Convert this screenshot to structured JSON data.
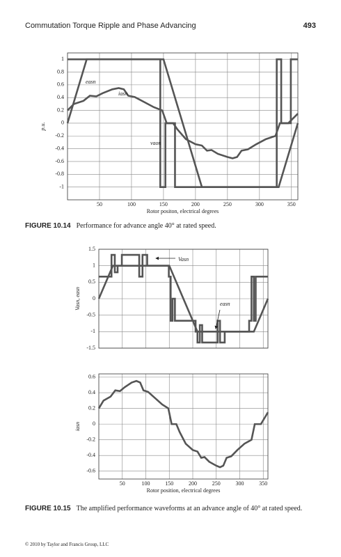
{
  "header": {
    "title": "Commutation Torque Ripple and Phase Advancing",
    "page": "493"
  },
  "chart_data": [
    {
      "type": "line",
      "xlim": [
        0,
        360
      ],
      "ylim": [
        -1.2,
        1.1
      ],
      "xticks": [
        50,
        100,
        150,
        200,
        250,
        300,
        350
      ],
      "xtick_labels": true,
      "yticks": [
        -1,
        -0.8,
        -0.6,
        -0.4,
        -0.2,
        0,
        0.2,
        0.4,
        0.6,
        0.8,
        1
      ],
      "xlabel": "Rotor positon, electrical degrees",
      "ylabel": "p.u.",
      "grid": true,
      "series": [
        {
          "name": "easn",
          "color": "#555555",
          "x": [
            0,
            30,
            150,
            210,
            330,
            360
          ],
          "values": [
            0,
            1,
            1,
            -1,
            -1,
            0
          ]
        },
        {
          "name": "iasn",
          "color": "#555555",
          "x": [
            0,
            10,
            25,
            35,
            45,
            55,
            70,
            80,
            88,
            95,
            105,
            120,
            135,
            148,
            155,
            165,
            172,
            185,
            200,
            210,
            218,
            225,
            235,
            250,
            258,
            265,
            272,
            282,
            295,
            310,
            325,
            332,
            345,
            360
          ],
          "values": [
            0.2,
            0.3,
            0.35,
            0.43,
            0.42,
            0.47,
            0.53,
            0.55,
            0.53,
            0.43,
            0.41,
            0.33,
            0.25,
            0.2,
            0,
            0,
            -0.1,
            -0.25,
            -0.33,
            -0.35,
            -0.43,
            -0.42,
            -0.48,
            -0.53,
            -0.55,
            -0.53,
            -0.43,
            -0.41,
            -0.33,
            -0.25,
            -0.2,
            0,
            0,
            0.15
          ]
        },
        {
          "name": "vaon",
          "color": "#555555",
          "x": [
            0,
            145,
            145,
            153,
            153,
            168,
            168,
            327,
            327,
            334,
            334,
            349,
            349,
            360
          ],
          "values": [
            1,
            1,
            -1,
            -1,
            0,
            0,
            -1,
            -1,
            1,
            1,
            0,
            0,
            1,
            1
          ]
        }
      ]
    },
    {
      "type": "line",
      "xlim": [
        0,
        360
      ],
      "ylim": [
        -1.5,
        1.5
      ],
      "xticks": [
        50,
        100,
        150,
        200,
        250,
        300,
        350
      ],
      "xtick_labels": false,
      "yticks": [
        -1.5,
        -1,
        -0.5,
        0,
        0.5,
        1,
        1.5
      ],
      "ylabel": "Vasn, easn",
      "grid": true,
      "series": [
        {
          "name": "Vasn",
          "color": "#555555",
          "x": [
            0,
            27,
            27,
            34,
            34,
            40,
            40,
            49,
            49,
            86,
            86,
            93,
            93,
            103,
            103,
            149,
            149,
            153,
            153,
            157,
            157,
            162,
            162,
            206,
            206,
            210,
            210,
            215,
            215,
            220,
            220,
            253,
            253,
            258,
            258,
            268,
            268,
            320,
            320,
            325,
            325,
            330,
            330,
            334,
            334,
            360
          ],
          "values": [
            0.67,
            0.67,
            1.33,
            1.33,
            0.8,
            0.8,
            1,
            1,
            1.33,
            1.33,
            0.67,
            0.67,
            1.33,
            1.33,
            1,
            1,
            0.67,
            0.67,
            -0.67,
            -0.67,
            0,
            0,
            -0.67,
            -0.67,
            -1,
            -1,
            -1.33,
            -1.33,
            -0.8,
            -0.8,
            -1.33,
            -1.33,
            -0.67,
            -0.67,
            -1.33,
            -1.33,
            -1,
            -1,
            -0.67,
            -0.67,
            0.67,
            0.67,
            -0.67,
            -0.67,
            0.67,
            0.67
          ]
        },
        {
          "name": "easn",
          "color": "#555555",
          "x": [
            0,
            30,
            150,
            210,
            330,
            360
          ],
          "values": [
            0,
            1,
            1,
            -1,
            -1,
            0
          ]
        }
      ]
    },
    {
      "type": "line",
      "xlim": [
        0,
        360
      ],
      "ylim": [
        -0.7,
        0.64
      ],
      "xticks": [
        50,
        100,
        150,
        200,
        250,
        300,
        350
      ],
      "xtick_labels": true,
      "yticks": [
        -0.6,
        -0.4,
        -0.2,
        0,
        0.2,
        0.4,
        0.6
      ],
      "xlabel": "Rotor position, electrical degrees",
      "ylabel": "iasn",
      "grid": true,
      "series": [
        {
          "color": "#555555",
          "x": [
            0,
            10,
            25,
            35,
            45,
            55,
            70,
            80,
            88,
            95,
            105,
            120,
            135,
            148,
            155,
            165,
            172,
            185,
            200,
            210,
            218,
            225,
            235,
            250,
            258,
            265,
            272,
            282,
            295,
            310,
            325,
            332,
            345,
            360
          ],
          "values": [
            0.2,
            0.3,
            0.35,
            0.43,
            0.42,
            0.47,
            0.53,
            0.55,
            0.53,
            0.43,
            0.41,
            0.33,
            0.25,
            0.2,
            0,
            0,
            -0.1,
            -0.25,
            -0.33,
            -0.35,
            -0.43,
            -0.42,
            -0.48,
            -0.53,
            -0.55,
            -0.53,
            -0.43,
            -0.41,
            -0.33,
            -0.25,
            -0.2,
            0,
            0,
            0.15
          ]
        }
      ]
    }
  ],
  "captions": [
    {
      "label": "FIGURE 10.14",
      "text": "Performance for advance angle 40° at rated speed."
    },
    {
      "label": "FIGURE 10.15",
      "text": "The amplified performance waveforms at an advance angle of 40° at rated speed."
    }
  ],
  "footer": "© 2010 by Taylor and Francis Group, LLC"
}
